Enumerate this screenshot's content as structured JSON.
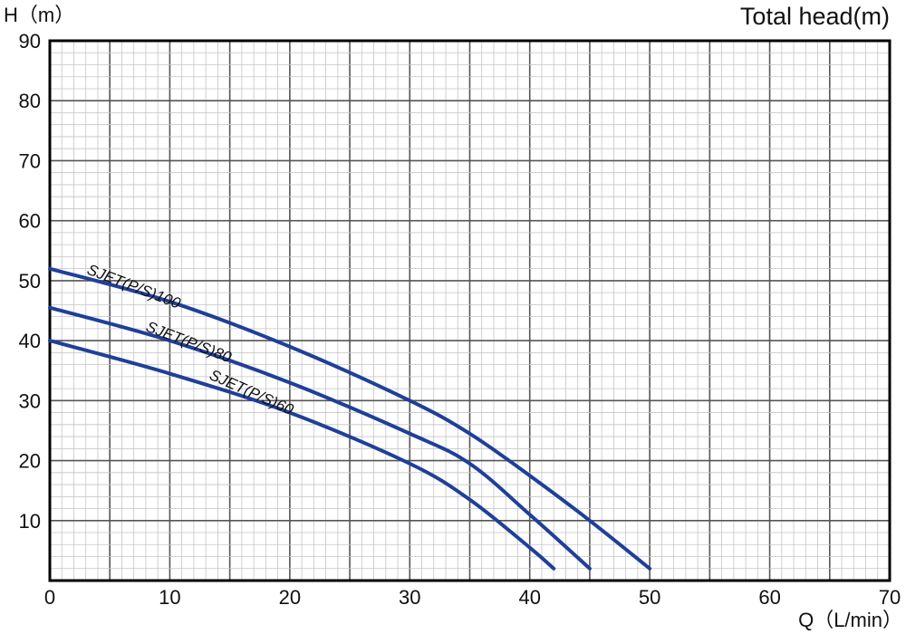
{
  "chart_data": {
    "type": "line",
    "title": "Total head(m)",
    "ylabel": "H（m）",
    "xlabel": "Q（L/min）",
    "xlim": [
      0,
      70
    ],
    "ylim": [
      0,
      90
    ],
    "x_ticks": [
      "0",
      "10",
      "20",
      "30",
      "40",
      "50",
      "60",
      "70"
    ],
    "y_ticks": [
      "10",
      "20",
      "30",
      "40",
      "50",
      "60",
      "70",
      "80",
      "90"
    ],
    "grid": true,
    "line_color": "#1f3f9a",
    "series": [
      {
        "name": "SJET(P/S)100",
        "x": [
          0,
          10,
          20,
          30,
          35,
          40,
          45,
          50
        ],
        "y": [
          52,
          46.5,
          39,
          30,
          24.5,
          17.5,
          10,
          2
        ]
      },
      {
        "name": "SJET(P/S)80",
        "x": [
          0,
          10,
          20,
          30,
          35,
          40,
          45
        ],
        "y": [
          45.5,
          40,
          33,
          24.5,
          19.5,
          11,
          2
        ]
      },
      {
        "name": "SJET(P/S)60",
        "x": [
          0,
          10,
          20,
          30,
          35,
          40,
          42
        ],
        "y": [
          40,
          34.5,
          28,
          19.5,
          13.5,
          5.5,
          2
        ]
      }
    ]
  }
}
